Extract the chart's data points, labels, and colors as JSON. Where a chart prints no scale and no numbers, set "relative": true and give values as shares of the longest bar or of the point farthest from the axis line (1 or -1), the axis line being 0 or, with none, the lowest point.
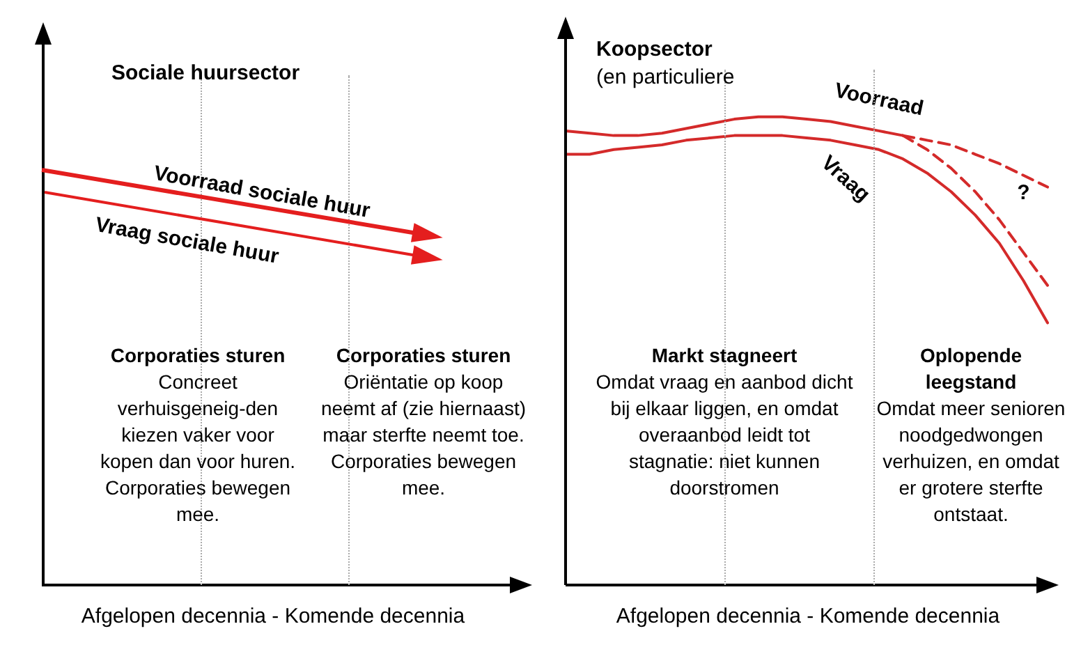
{
  "chart_data": [
    {
      "type": "other",
      "title": "Sociale huursector",
      "xlabel": "Afgelopen decennia - Komende decennia",
      "annotations": [
        "Voorraad sociale huur",
        "Vraag sociale huur",
        "Corporaties sturen",
        "Concreet verhuisgeneig-den kiezen vaker voor kopen dan voor huren. Corporaties bewegen mee.",
        "Corporaties sturen",
        "Oriëntatie op koop neemt af (zie hiernaast) maar sterfte neemt toe. Corporaties bewegen mee."
      ]
    },
    {
      "type": "line",
      "relative": true,
      "title": "Koopsector",
      "subtitle": "(en particuliere",
      "xlabel": "Afgelopen decennia  - Komende decennia",
      "tick_labels": false,
      "categories": [
        null,
        null,
        null,
        null,
        null,
        null,
        null,
        null,
        null,
        null,
        null,
        null,
        null,
        null,
        null,
        null,
        null,
        null,
        null,
        null,
        null
      ],
      "series": [
        {
          "name": "Voorraad",
          "color": "#d42a2a",
          "values": [
            0.97,
            0.965,
            0.96,
            0.96,
            0.965,
            0.975,
            0.985,
            0.995,
            1,
            1,
            0.995,
            0.99,
            0.98,
            0.97,
            0.96,
            null,
            null,
            null,
            null,
            null,
            null
          ]
        },
        {
          "color": "#d42a2a",
          "line_style": "dashed",
          "values": [
            null,
            null,
            null,
            null,
            null,
            null,
            null,
            null,
            null,
            null,
            null,
            null,
            null,
            null,
            0.96,
            0.95,
            0.94,
            0.92,
            0.9,
            0.875,
            0.85
          ]
        },
        {
          "color": "#d42a2a",
          "line_style": "dashed",
          "values": [
            null,
            null,
            null,
            null,
            null,
            null,
            null,
            null,
            null,
            null,
            null,
            null,
            null,
            null,
            0.96,
            0.93,
            0.89,
            0.84,
            0.78,
            0.71,
            0.64
          ]
        },
        {
          "name": "Vraag",
          "color": "#d42a2a",
          "values": [
            0.92,
            0.92,
            0.93,
            0.935,
            0.94,
            0.95,
            0.955,
            0.96,
            0.96,
            0.96,
            0.955,
            0.95,
            0.94,
            0.93,
            0.91,
            0.88,
            0.84,
            0.79,
            0.73,
            0.65,
            0.56
          ]
        }
      ],
      "annotations": [
        "Markt stagneert",
        "Omdat vraag en aanbod dicht bij elkaar liggen, en omdat overaanbod leidt tot stagnatie: niet kunnen doorstromen",
        "Oplopende leegstand",
        "Omdat meer senioren noodgedwongen verhuizen, en omdat er grotere sterfte ontstaat.",
        "?"
      ]
    }
  ]
}
